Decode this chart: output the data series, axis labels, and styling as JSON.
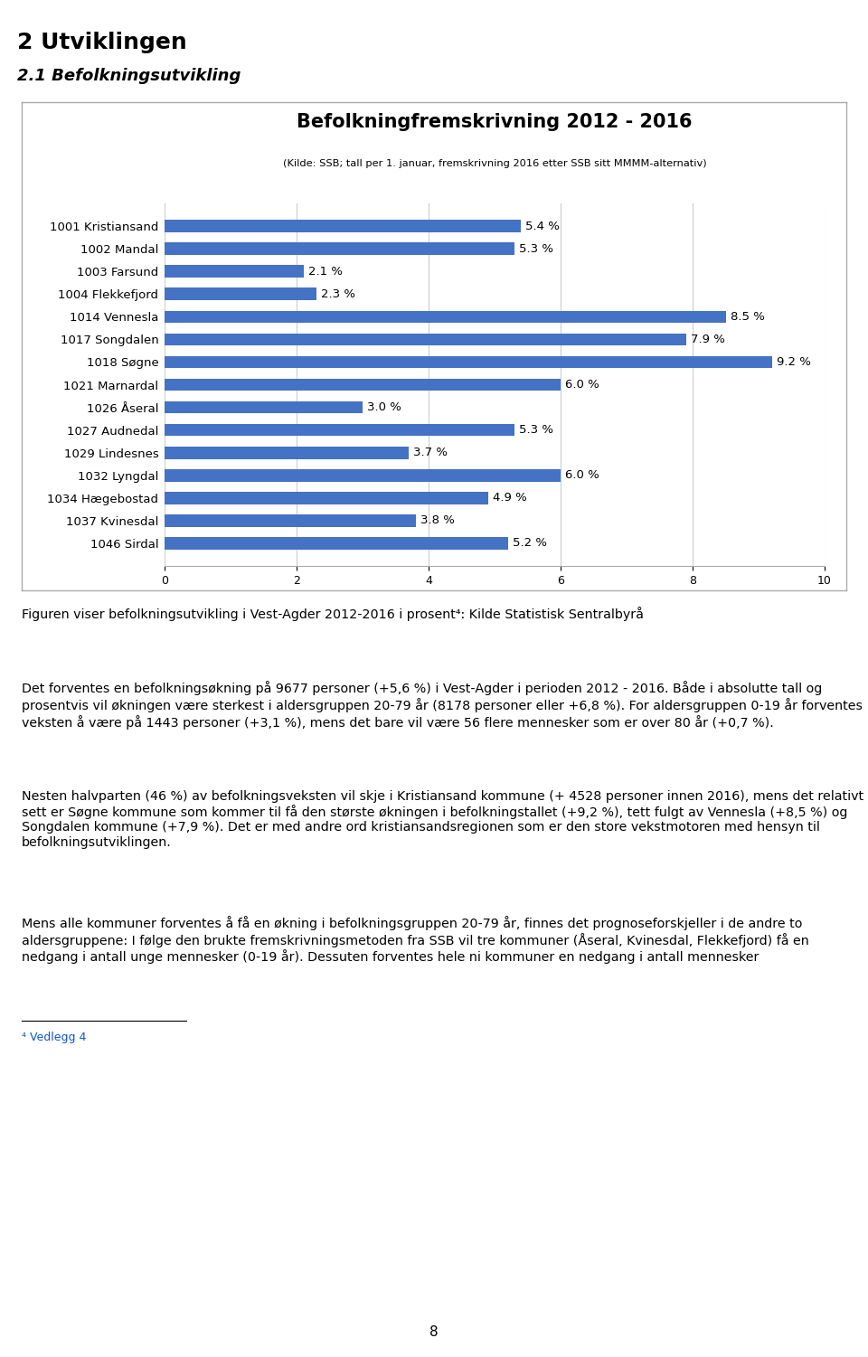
{
  "title": "Befolkningfremskrivning 2012 - 2016",
  "subtitle": "(Kilde: SSB; tall per 1. januar, fremskrivning 2016 etter SSB sitt MMMM-alternativ)",
  "categories": [
    "1001 Kristiansand",
    "1002 Mandal",
    "1003 Farsund",
    "1004 Flekkefjord",
    "1014 Vennesla",
    "1017 Songdalen",
    "1018 Søgne",
    "1021 Marnardal",
    "1026 Åseral",
    "1027 Audnedal",
    "1029 Lindesnes",
    "1032 Lyngdal",
    "1034 Hægebostad",
    "1037 Kvinesdal",
    "1046 Sirdal"
  ],
  "values": [
    5.4,
    5.3,
    2.1,
    2.3,
    8.5,
    7.9,
    9.2,
    6.0,
    3.0,
    5.3,
    3.7,
    6.0,
    4.9,
    3.8,
    5.2
  ],
  "bar_color": "#4472C4",
  "xlim": [
    0,
    10
  ],
  "xticks": [
    0,
    2,
    4,
    6,
    8,
    10
  ],
  "chart_bg": "#ffffff",
  "outer_bg": "#ffffff",
  "heading1": "2 Utviklingen",
  "heading2": "2.1 Befolkningsutvikling",
  "body_text1": "Figuren viser befolkningsutvikling i Vest-Agder 2012-2016 i prosent⁴: Kilde Statistisk Sentralbyrå",
  "body_text2": "Det forventes en befolkningsøkning på 9677 personer (+5,6 %) i Vest-Agder i perioden 2012 - 2016. Både i absolutte tall og prosentvis vil økningen være sterkest i aldersgruppen 20-79 år (8178 personer eller +6,8 %). For aldersgruppen 0-19 år forventes veksten å være på 1443 personer (+3,1 %), mens det bare vil være 56 flere mennesker som er over 80 år (+0,7 %).",
  "body_text3": "Nesten halvparten (46 %) av befolkningsveksten vil skje i Kristiansand kommune (+ 4528 personer innen 2016), mens det relativt sett er Søgne kommune som kommer til få den største økningen i befolkningstallet (+9,2 %), tett fulgt av Vennesla (+8,5 %) og Songdalen kommune (+7,9 %). Det er med andre ord kristiansandsregionen som er den store vekstmotoren med hensyn til befolkningsutviklingen.",
  "body_text4": "Mens alle kommuner forventes å få en økning i befolkningsgruppen 20-79 år, finnes det prognoseforskjeller i de andre to aldersgruppene: I følge den brukte fremskrivningsmetoden fra SSB vil tre kommuner (Åseral, Kvinesdal, Flekkefjord) få en nedgang i antall unge mennesker (0-19 år). Dessuten forventes hele ni kommuner en nedgang i antall mennesker",
  "footnote": "⁴ Vedlegg 4",
  "page_number": "8"
}
